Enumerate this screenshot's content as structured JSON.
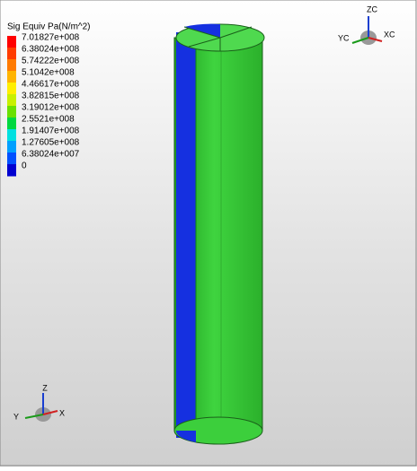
{
  "legend": {
    "title": "Sig Equiv Pa(N/m^2)",
    "labels": [
      "7.01827e+008",
      "6.38024e+008",
      "5.74222e+008",
      "5.1042e+008",
      "4.46617e+008",
      "3.82815e+008",
      "3.19012e+008",
      "2.5521e+008",
      "1.91407e+008",
      "1.27605e+008",
      "6.38024e+007",
      "0"
    ]
  },
  "view_triad": {
    "z": "ZC",
    "y": "YC",
    "x": "XC"
  },
  "model_triad": {
    "z": "Z",
    "y": "Y",
    "x": "X"
  }
}
